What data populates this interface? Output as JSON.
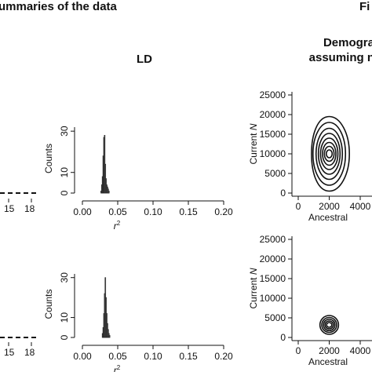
{
  "headers": {
    "left": "ummaries of the data",
    "right_cut": "Fi",
    "ld": "LD",
    "demog_line1": "Demogra",
    "demog_line2": "assuming n"
  },
  "left_fragments": {
    "ticks": [
      "15",
      "18"
    ]
  },
  "chart_data": [
    {
      "type": "bar",
      "id": "ld-top",
      "xlabel": "r²",
      "ylabel": "Counts",
      "xlim": [
        0.0,
        0.2
      ],
      "ylim": [
        0,
        35
      ],
      "xticks": [
        "0.00",
        "0.05",
        "0.10",
        "0.15",
        "0.20"
      ],
      "yticks": [
        "0",
        "10",
        "30"
      ],
      "bins": [
        0.0265,
        0.0275,
        0.0285,
        0.0295,
        0.0305,
        0.0315,
        0.0325,
        0.0335,
        0.0345,
        0.0355,
        0.0365,
        0.0375
      ],
      "values": [
        1,
        4,
        8,
        18,
        27,
        28,
        14,
        7,
        4,
        3,
        2,
        1
      ]
    },
    {
      "type": "bar",
      "id": "ld-bottom",
      "xlabel": "r²",
      "ylabel": "Counts",
      "xlim": [
        0.0,
        0.2
      ],
      "ylim": [
        0,
        35
      ],
      "xticks": [
        "0.00",
        "0.05",
        "0.10",
        "0.15",
        "0.20"
      ],
      "yticks": [
        "0",
        "10",
        "30"
      ],
      "bins": [
        0.0285,
        0.0295,
        0.0305,
        0.0315,
        0.0325,
        0.0335,
        0.0345,
        0.0355,
        0.0365,
        0.0375,
        0.0385
      ],
      "values": [
        2,
        5,
        12,
        22,
        30,
        20,
        12,
        7,
        4,
        2,
        1
      ]
    },
    {
      "type": "contour",
      "id": "demog-top",
      "xlabel": "Ancestral",
      "ylabel": "Current N",
      "xlim": [
        0,
        4500
      ],
      "ylim": [
        0,
        25000
      ],
      "xticks": [
        "0",
        "2000",
        "4000"
      ],
      "yticks": [
        "0",
        "5000",
        "10000",
        "15000",
        "20000",
        "25000"
      ],
      "center": [
        2000,
        10000
      ],
      "levels": [
        {
          "rx": 1300,
          "ry": 9500
        },
        {
          "rx": 1050,
          "ry": 8000
        },
        {
          "rx": 850,
          "ry": 6500
        },
        {
          "rx": 700,
          "ry": 5200
        },
        {
          "rx": 560,
          "ry": 4000
        },
        {
          "rx": 430,
          "ry": 2900
        },
        {
          "rx": 310,
          "ry": 1900
        },
        {
          "rx": 190,
          "ry": 1000
        }
      ]
    },
    {
      "type": "contour",
      "id": "demog-bottom",
      "xlabel": "Ancestral",
      "ylabel": "Current N",
      "xlim": [
        0,
        4500
      ],
      "ylim": [
        0,
        25000
      ],
      "xticks": [
        "0",
        "2000",
        "4000"
      ],
      "yticks": [
        "0",
        "5000",
        "10000",
        "15000",
        "20000",
        "25000"
      ],
      "center": [
        2000,
        3200
      ],
      "levels": [
        {
          "rx": 600,
          "ry": 2400
        },
        {
          "rx": 480,
          "ry": 1900
        },
        {
          "rx": 370,
          "ry": 1450
        },
        {
          "rx": 270,
          "ry": 1000
        },
        {
          "rx": 170,
          "ry": 600
        }
      ]
    }
  ]
}
